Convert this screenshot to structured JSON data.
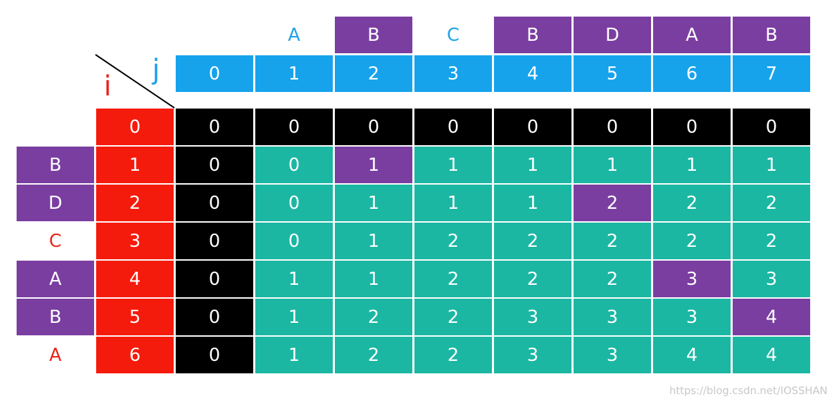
{
  "axis_labels": {
    "j": "j",
    "i": "i"
  },
  "string_x": [
    "A",
    "B",
    "C",
    "B",
    "D",
    "A",
    "B"
  ],
  "string_y": [
    "B",
    "D",
    "C",
    "A",
    "B",
    "A"
  ],
  "j_indices": [
    "0",
    "1",
    "2",
    "3",
    "4",
    "5",
    "6",
    "7"
  ],
  "i_indices": [
    "0",
    "1",
    "2",
    "3",
    "4",
    "5",
    "6"
  ],
  "highlight_x": [
    false,
    true,
    false,
    true,
    true,
    true,
    true
  ],
  "highlight_y": [
    true,
    true,
    false,
    true,
    true,
    false
  ],
  "table": [
    [
      "0",
      "0",
      "0",
      "0",
      "0",
      "0",
      "0",
      "0"
    ],
    [
      "0",
      "0",
      "1",
      "1",
      "1",
      "1",
      "1",
      "1"
    ],
    [
      "0",
      "0",
      "1",
      "1",
      "1",
      "2",
      "2",
      "2"
    ],
    [
      "0",
      "0",
      "1",
      "2",
      "2",
      "2",
      "2",
      "2"
    ],
    [
      "0",
      "1",
      "1",
      "2",
      "2",
      "2",
      "3",
      "3"
    ],
    [
      "0",
      "1",
      "2",
      "2",
      "3",
      "3",
      "3",
      "4"
    ],
    [
      "0",
      "1",
      "2",
      "2",
      "3",
      "3",
      "4",
      "4"
    ]
  ],
  "highlight_cells": [
    [
      1,
      2
    ],
    [
      2,
      5
    ],
    [
      4,
      6
    ],
    [
      5,
      7
    ]
  ],
  "colors": {
    "letter_highlight": "#7a3ea1",
    "column_index": "#16a3ec",
    "row_index": "#f51b0c",
    "zero_boundary": "#000000",
    "body": "#1bb7a3",
    "match_cell": "#7a3ea1"
  },
  "watermark": "https://blog.csdn.net/IOSSHAN"
}
